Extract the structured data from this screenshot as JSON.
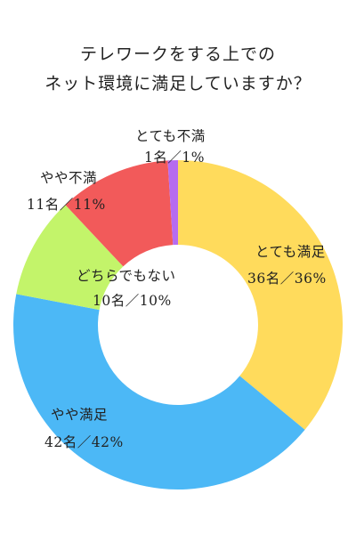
{
  "chart_data": {
    "type": "donut",
    "title_lines": [
      "テレワークをする上での",
      "ネット環境に満足していますか？"
    ],
    "total": 100,
    "slices": [
      {
        "key": "very_satisfied",
        "name": "とても満足",
        "value": 36,
        "display": "36名／36%",
        "color": "#FFDB5C"
      },
      {
        "key": "fairly_satisfied",
        "name": "やや満足",
        "value": 42,
        "display": "42名／42%",
        "color": "#4CB8F6"
      },
      {
        "key": "neutral",
        "name": "どちらでもない",
        "value": 10,
        "display": "10名／10%",
        "color": "#C3F46A"
      },
      {
        "key": "fairly_dissatisfied",
        "name": "やや不満",
        "value": 11,
        "display": "11名／11%",
        "color": "#F25A5A"
      },
      {
        "key": "very_dissatisfied",
        "name": "とても不満",
        "value": 1,
        "display": "1名／1%",
        "color": "#B66BF0"
      }
    ]
  }
}
